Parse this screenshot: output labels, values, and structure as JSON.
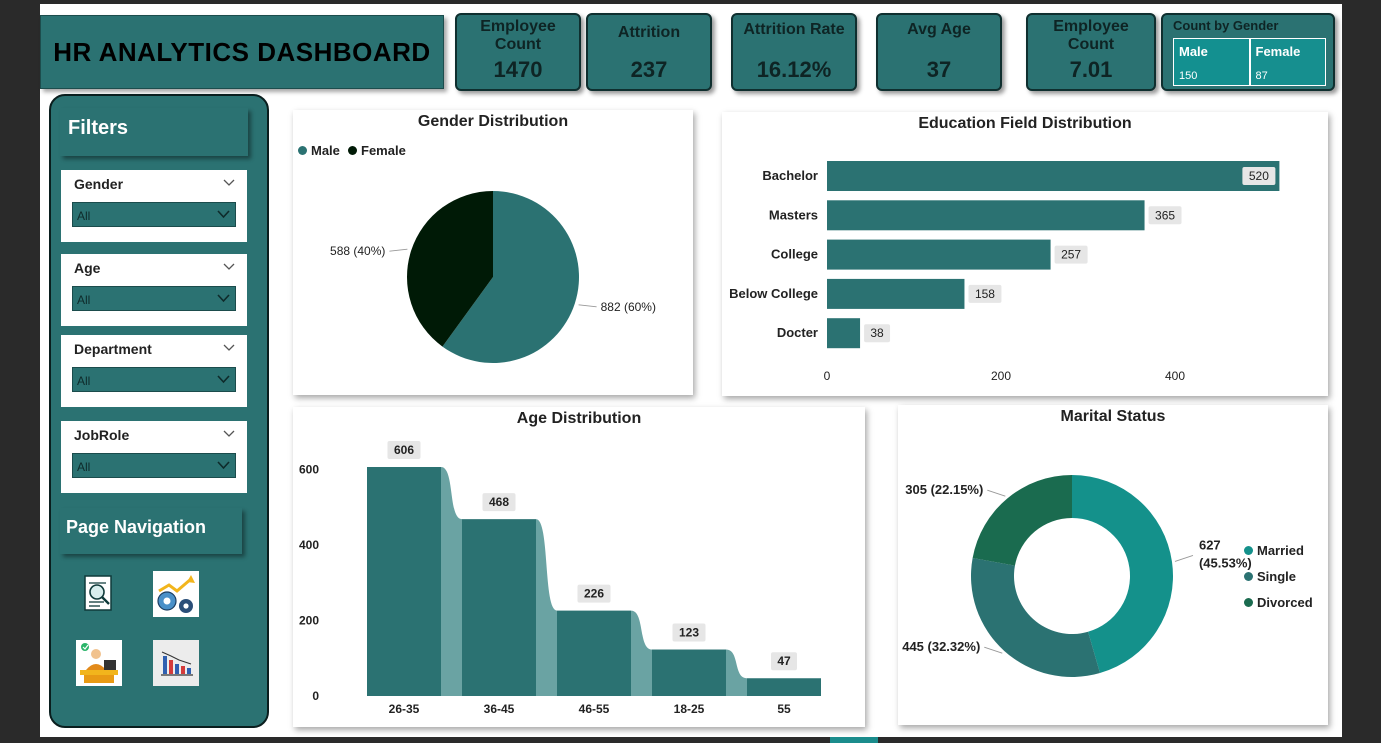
{
  "header": {
    "title": "HR ANALYTICS DASHBOARD"
  },
  "kpis": [
    {
      "label": "Employee Count",
      "value": "1470"
    },
    {
      "label": "Attrition",
      "value": "237"
    },
    {
      "label": "Attrition Rate",
      "value": "16.12%"
    },
    {
      "label": "Avg Age",
      "value": "37"
    },
    {
      "label": "Employee Count",
      "value": "7.01"
    }
  ],
  "count_by_gender": {
    "title": "Count by Gender",
    "columns": [
      {
        "label": "Male",
        "value": "150"
      },
      {
        "label": "Female",
        "value": "87"
      }
    ]
  },
  "filters": {
    "title": "Filters",
    "slicers": [
      {
        "label": "Gender",
        "value": "All"
      },
      {
        "label": "Age",
        "value": "All"
      },
      {
        "label": "Department",
        "value": "All"
      },
      {
        "label": "JobRole",
        "value": "All"
      }
    ]
  },
  "navigation": {
    "title": "Page Navigation",
    "icons": [
      "report-search-icon",
      "performance-gear-icon",
      "employee-desk-icon",
      "bar-chart-icon"
    ]
  },
  "colors": {
    "teal": "#2b7272",
    "dark": "#001a06",
    "married": "#14918b",
    "single": "#2b7272",
    "divorced": "#1a6b4f"
  },
  "chart_data": [
    {
      "type": "pie",
      "title": "Gender Distribution",
      "legend": [
        "Male",
        "Female"
      ],
      "slices": [
        {
          "name": "Male",
          "value": 882,
          "label": "882 (60%)"
        },
        {
          "name": "Female",
          "value": 588,
          "label": "588 (40%)"
        }
      ]
    },
    {
      "type": "bar",
      "title": "Education Field Distribution",
      "orientation": "horizontal",
      "categories": [
        "Bachelor",
        "Masters",
        "College",
        "Below College",
        "Docter"
      ],
      "values": [
        520,
        365,
        257,
        158,
        38
      ],
      "xticks": [
        "0",
        "200",
        "400"
      ],
      "xlim": [
        0,
        560
      ]
    },
    {
      "type": "bar",
      "title": "Age Distribution",
      "categories": [
        "26-35",
        "36-45",
        "46-55",
        "18-25",
        "55"
      ],
      "values": [
        606,
        468,
        226,
        123,
        47
      ],
      "yticks": [
        "0",
        "200",
        "400",
        "600"
      ],
      "ylim": [
        0,
        650
      ]
    },
    {
      "type": "pie",
      "title": "Marital Status",
      "donut": true,
      "legend": [
        "Married",
        "Single",
        "Divorced"
      ],
      "slices": [
        {
          "name": "Married",
          "value": 627,
          "label_top": "627",
          "label_bottom": "(45.53%)"
        },
        {
          "name": "Single",
          "value": 445,
          "label": "445 (32.32%)"
        },
        {
          "name": "Divorced",
          "value": 305,
          "label": "305 (22.15%)"
        }
      ]
    }
  ]
}
